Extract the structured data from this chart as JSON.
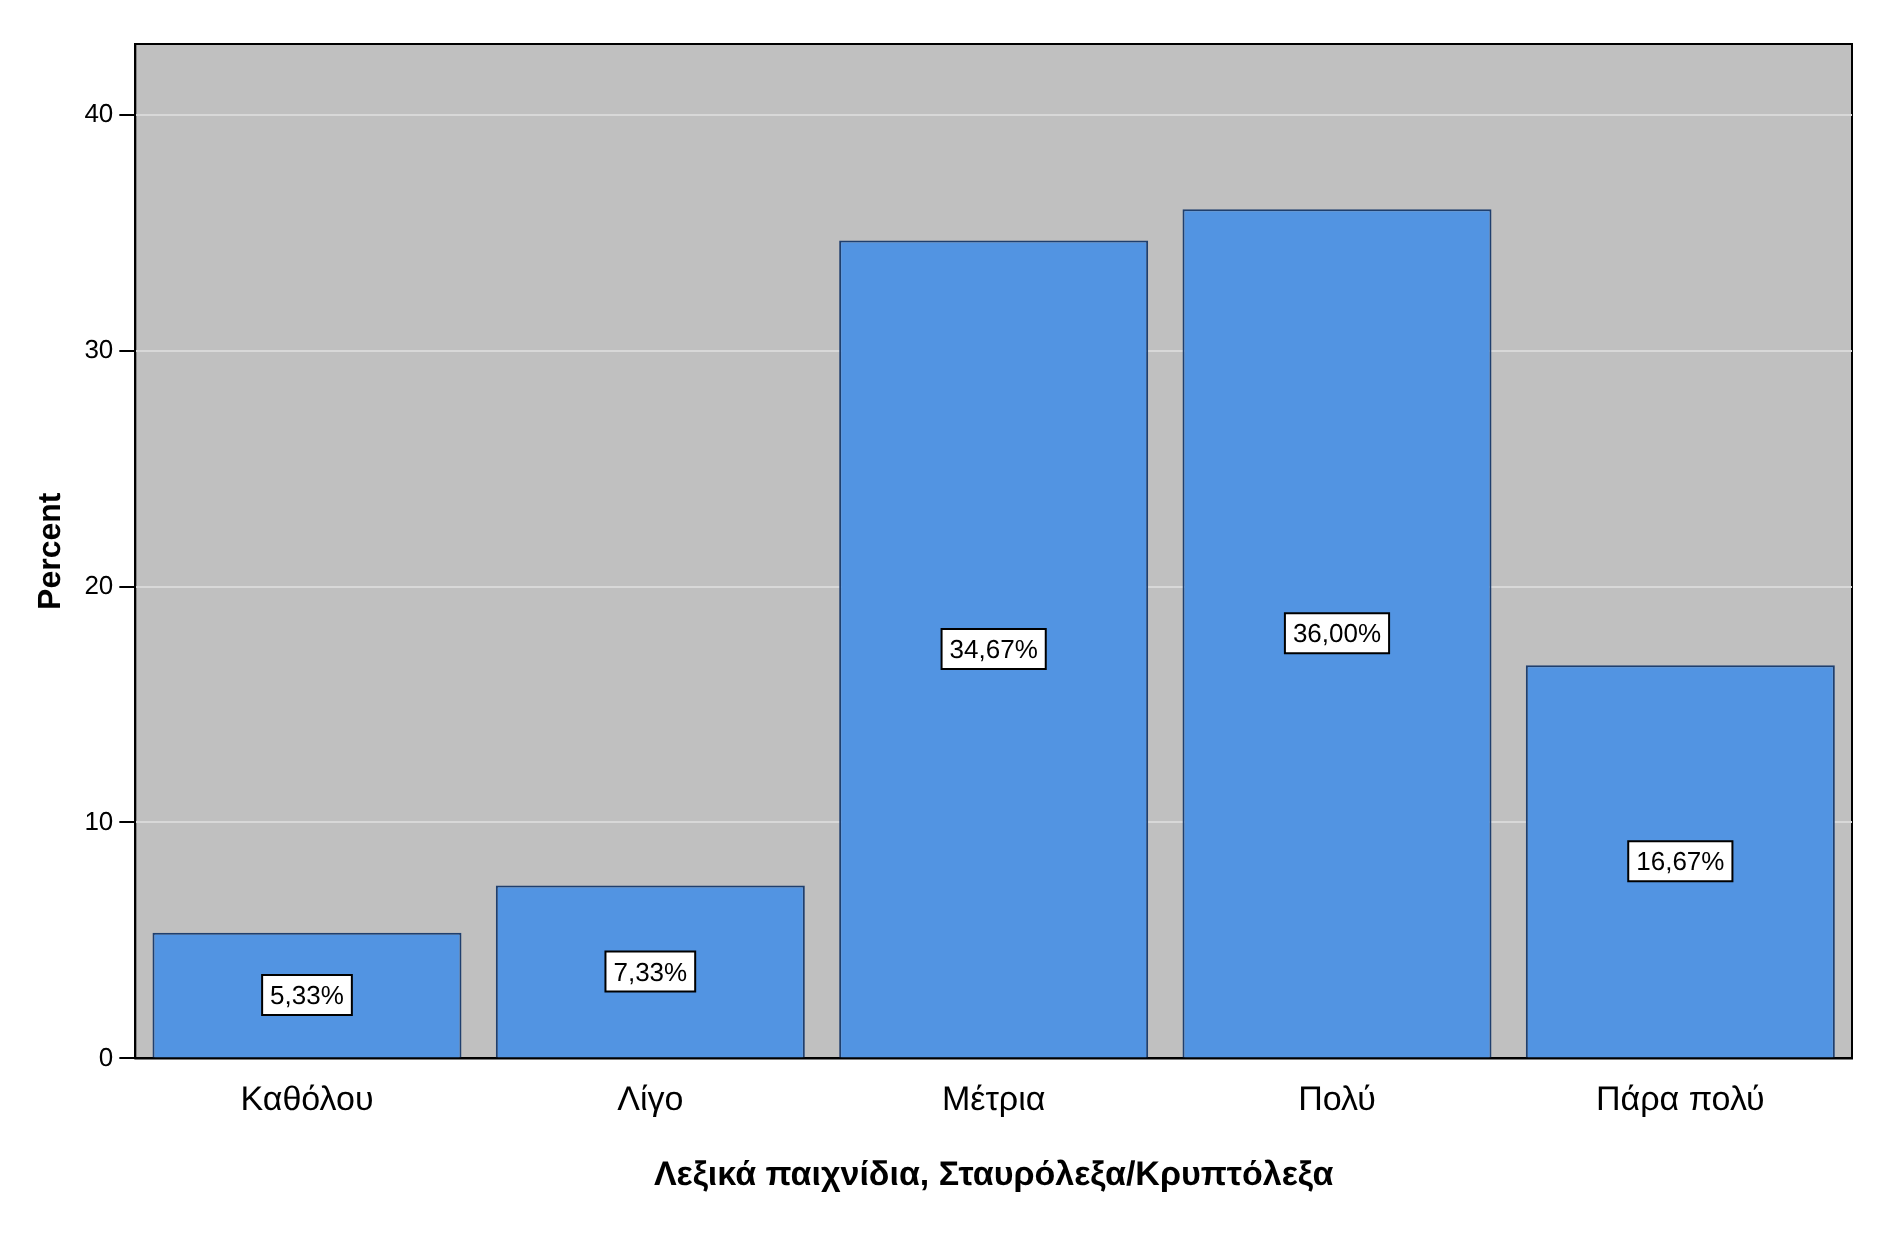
{
  "chart_data": {
    "type": "bar",
    "xlabel": "Λεξικά παιχνίδια, Σταυρόλεξα/Κρυπτόλεξα",
    "ylabel": "Percent",
    "categories": [
      "Καθόλου",
      "Λίγο",
      "Μέτρια",
      "Πολύ",
      "Πάρα πολύ"
    ],
    "values": [
      5.33,
      7.33,
      34.67,
      36.0,
      16.67
    ],
    "value_labels": [
      "5,33%",
      "7,33%",
      "34,67%",
      "36,00%",
      "16,67%"
    ],
    "color": "#5294e2",
    "ylim": [
      0,
      43
    ],
    "yticks": [
      0,
      10,
      20,
      30,
      40
    ],
    "grid": "y",
    "legend": false
  }
}
